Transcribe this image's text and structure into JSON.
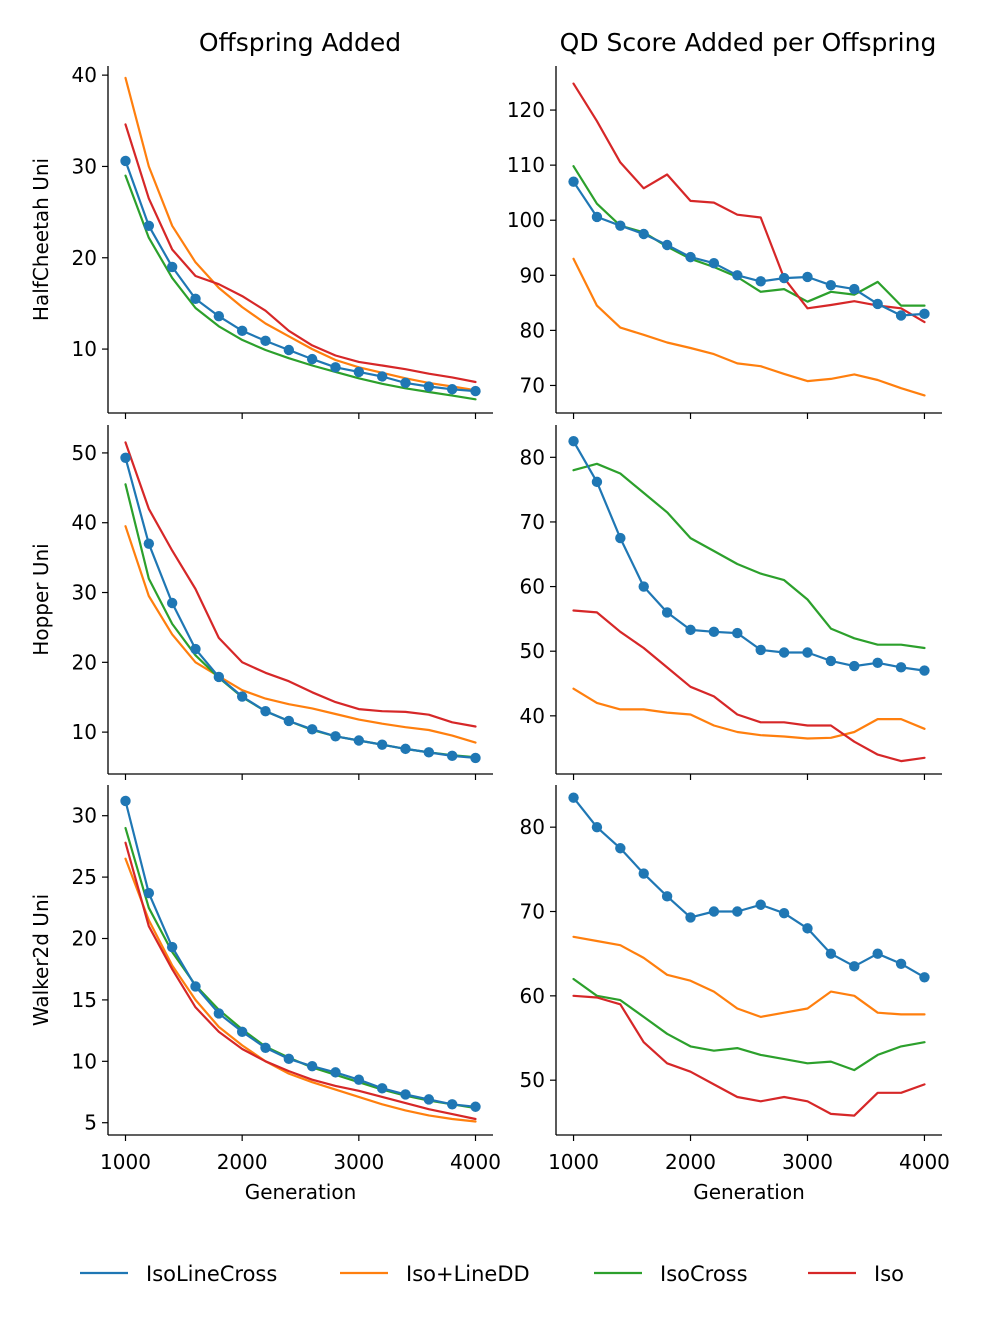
{
  "colors": {
    "IsoLineCross": "#1f77b4",
    "Iso+LineDD": "#ff7f0e",
    "IsoCross": "#2ca02c",
    "Iso": "#d62728"
  },
  "legend": {
    "position": "bottom",
    "entries": [
      "IsoLineCross",
      "Iso+LineDD",
      "IsoCross",
      "Iso"
    ]
  },
  "column_titles": [
    "Offspring Added",
    "QD Score Added per Offspring"
  ],
  "row_labels": [
    "HalfCheetah Uni",
    "Hopper Uni",
    "Walker2d Uni"
  ],
  "xlabel": "Generation",
  "chart_data": [
    {
      "type": "line",
      "title": "Offspring Added",
      "ylabel": "HalfCheetah Uni",
      "xlabel": "",
      "x": [
        1000,
        1200,
        1400,
        1600,
        1800,
        2000,
        2200,
        2400,
        2600,
        2800,
        3000,
        3200,
        3400,
        3600,
        3800,
        4000
      ],
      "xlim": [
        850,
        4150
      ],
      "ylim": [
        3,
        41
      ],
      "yticks": [
        10,
        20,
        30,
        40
      ],
      "xticks": [
        1000,
        2000,
        3000,
        4000
      ],
      "xtick_labels_shown": false,
      "series": [
        {
          "name": "IsoLineCross",
          "marker": "circle",
          "values": [
            30.6,
            23.5,
            19.0,
            15.5,
            13.6,
            12.0,
            10.9,
            9.9,
            8.9,
            8.0,
            7.5,
            7.0,
            6.3,
            5.9,
            5.6,
            5.4
          ]
        },
        {
          "name": "Iso+LineDD",
          "values": [
            39.7,
            30.0,
            23.5,
            19.5,
            16.7,
            14.6,
            12.8,
            11.4,
            10.0,
            8.8,
            8.0,
            7.4,
            6.8,
            6.3,
            5.9,
            5.5
          ]
        },
        {
          "name": "IsoCross",
          "values": [
            29.0,
            22.2,
            17.8,
            14.5,
            12.5,
            11.0,
            9.9,
            9.0,
            8.2,
            7.5,
            6.8,
            6.2,
            5.7,
            5.3,
            4.9,
            4.5
          ]
        },
        {
          "name": "Iso",
          "values": [
            34.6,
            26.5,
            20.9,
            18.0,
            17.1,
            15.8,
            14.2,
            12.0,
            10.4,
            9.3,
            8.6,
            8.2,
            7.8,
            7.3,
            6.9,
            6.4
          ]
        }
      ]
    },
    {
      "type": "line",
      "title": "QD Score Added per Offspring",
      "ylabel": "",
      "xlabel": "",
      "x": [
        1000,
        1200,
        1400,
        1600,
        1800,
        2000,
        2200,
        2400,
        2600,
        2800,
        3000,
        3200,
        3400,
        3600,
        3800,
        4000
      ],
      "xlim": [
        850,
        4150
      ],
      "ylim": [
        65,
        128
      ],
      "yticks": [
        70,
        80,
        90,
        100,
        110,
        120
      ],
      "xticks": [
        1000,
        2000,
        3000,
        4000
      ],
      "xtick_labels_shown": false,
      "series": [
        {
          "name": "IsoLineCross",
          "marker": "circle",
          "values": [
            107.0,
            100.6,
            99.0,
            97.5,
            95.5,
            93.3,
            92.2,
            90.0,
            88.9,
            89.5,
            89.7,
            88.2,
            87.5,
            84.8,
            82.7,
            83.0
          ]
        },
        {
          "name": "Iso+LineDD",
          "values": [
            93.0,
            84.5,
            80.5,
            79.2,
            77.8,
            76.8,
            75.7,
            74.0,
            73.5,
            72.1,
            70.8,
            71.2,
            72.0,
            71.0,
            69.5,
            68.2
          ]
        },
        {
          "name": "IsoCross",
          "values": [
            109.8,
            103.0,
            99.0,
            97.8,
            95.2,
            93.0,
            91.5,
            89.7,
            87.0,
            87.5,
            85.2,
            87.0,
            86.5,
            88.8,
            84.5,
            84.5
          ]
        },
        {
          "name": "Iso",
          "values": [
            124.8,
            118.0,
            110.5,
            105.8,
            108.3,
            103.5,
            103.2,
            101.0,
            100.5,
            89.5,
            84.0,
            84.6,
            85.3,
            84.5,
            84.0,
            81.5
          ]
        }
      ]
    },
    {
      "type": "line",
      "title": "",
      "ylabel": "Hopper Uni",
      "xlabel": "",
      "x": [
        1000,
        1200,
        1400,
        1600,
        1800,
        2000,
        2200,
        2400,
        2600,
        2800,
        3000,
        3200,
        3400,
        3600,
        3800,
        4000
      ],
      "xlim": [
        850,
        4150
      ],
      "ylim": [
        4,
        54
      ],
      "yticks": [
        10,
        20,
        30,
        40,
        50
      ],
      "xticks": [
        1000,
        2000,
        3000,
        4000
      ],
      "xtick_labels_shown": false,
      "series": [
        {
          "name": "IsoLineCross",
          "marker": "circle",
          "values": [
            49.3,
            37.0,
            28.5,
            21.9,
            17.9,
            15.1,
            13.0,
            11.6,
            10.4,
            9.4,
            8.8,
            8.2,
            7.6,
            7.1,
            6.6,
            6.3
          ]
        },
        {
          "name": "Iso+LineDD",
          "values": [
            39.5,
            29.5,
            24.0,
            20.0,
            18.0,
            16.0,
            14.8,
            14.0,
            13.4,
            12.6,
            11.8,
            11.2,
            10.7,
            10.3,
            9.5,
            8.5
          ]
        },
        {
          "name": "IsoCross",
          "values": [
            45.5,
            32.0,
            25.5,
            21.0,
            17.8,
            15.0,
            13.0,
            11.6,
            10.3,
            9.4,
            8.8,
            8.2,
            7.6,
            7.1,
            6.7,
            6.4
          ]
        },
        {
          "name": "Iso",
          "values": [
            51.5,
            42.0,
            36.0,
            30.5,
            23.5,
            20.0,
            18.5,
            17.3,
            15.7,
            14.3,
            13.3,
            13.0,
            12.9,
            12.5,
            11.4,
            10.8
          ]
        }
      ]
    },
    {
      "type": "line",
      "title": "",
      "ylabel": "",
      "xlabel": "",
      "x": [
        1000,
        1200,
        1400,
        1600,
        1800,
        2000,
        2200,
        2400,
        2600,
        2800,
        3000,
        3200,
        3400,
        3600,
        3800,
        4000
      ],
      "xlim": [
        850,
        4150
      ],
      "ylim": [
        31,
        85
      ],
      "yticks": [
        40,
        50,
        60,
        70,
        80
      ],
      "xticks": [
        1000,
        2000,
        3000,
        4000
      ],
      "xtick_labels_shown": false,
      "series": [
        {
          "name": "IsoLineCross",
          "marker": "circle",
          "values": [
            82.5,
            76.2,
            67.5,
            60.0,
            56.0,
            53.3,
            53.0,
            52.8,
            50.2,
            49.8,
            49.8,
            48.5,
            47.7,
            48.2,
            47.5,
            47.0
          ]
        },
        {
          "name": "Iso+LineDD",
          "values": [
            44.2,
            42.0,
            41.0,
            41.0,
            40.5,
            40.2,
            38.5,
            37.5,
            37.0,
            36.8,
            36.5,
            36.6,
            37.5,
            39.5,
            39.5,
            38.0
          ]
        },
        {
          "name": "IsoCross",
          "values": [
            78.0,
            79.0,
            77.5,
            74.5,
            71.5,
            67.5,
            65.5,
            63.5,
            62.0,
            61.0,
            58.0,
            53.5,
            52.0,
            51.0,
            51.0,
            50.5
          ]
        },
        {
          "name": "Iso",
          "values": [
            56.3,
            56.0,
            53.0,
            50.5,
            47.5,
            44.5,
            43.0,
            40.2,
            39.0,
            39.0,
            38.5,
            38.5,
            36.0,
            34.0,
            33.0,
            33.5
          ]
        }
      ]
    },
    {
      "type": "line",
      "title": "",
      "ylabel": "Walker2d Uni",
      "xlabel": "Generation",
      "x": [
        1000,
        1200,
        1400,
        1600,
        1800,
        2000,
        2200,
        2400,
        2600,
        2800,
        3000,
        3200,
        3400,
        3600,
        3800,
        4000
      ],
      "xlim": [
        850,
        4150
      ],
      "ylim": [
        4,
        32.5
      ],
      "yticks": [
        5,
        10,
        15,
        20,
        25,
        30
      ],
      "xticks": [
        1000,
        2000,
        3000,
        4000
      ],
      "xtick_labels_shown": true,
      "series": [
        {
          "name": "IsoLineCross",
          "marker": "circle",
          "values": [
            31.2,
            23.7,
            19.3,
            16.1,
            13.9,
            12.4,
            11.1,
            10.2,
            9.6,
            9.1,
            8.5,
            7.8,
            7.3,
            6.9,
            6.5,
            6.3
          ]
        },
        {
          "name": "Iso+LineDD",
          "values": [
            26.5,
            21.5,
            17.8,
            15.0,
            12.8,
            11.3,
            10.0,
            9.0,
            8.3,
            7.7,
            7.1,
            6.5,
            6.0,
            5.6,
            5.3,
            5.1
          ]
        },
        {
          "name": "IsoCross",
          "values": [
            29.0,
            22.5,
            18.9,
            16.2,
            14.2,
            12.6,
            11.2,
            10.3,
            9.5,
            8.9,
            8.3,
            7.7,
            7.2,
            6.8,
            6.5,
            6.2
          ]
        },
        {
          "name": "Iso",
          "values": [
            27.8,
            21.0,
            17.5,
            14.4,
            12.4,
            11.0,
            10.0,
            9.2,
            8.5,
            8.0,
            7.6,
            7.1,
            6.6,
            6.1,
            5.7,
            5.3
          ]
        }
      ]
    },
    {
      "type": "line",
      "title": "",
      "ylabel": "",
      "xlabel": "Generation",
      "x": [
        1000,
        1200,
        1400,
        1600,
        1800,
        2000,
        2200,
        2400,
        2600,
        2800,
        3000,
        3200,
        3400,
        3600,
        3800,
        4000
      ],
      "xlim": [
        850,
        4150
      ],
      "ylim": [
        43.5,
        85
      ],
      "yticks": [
        50,
        60,
        70,
        80
      ],
      "xticks": [
        1000,
        2000,
        3000,
        4000
      ],
      "xtick_labels_shown": true,
      "series": [
        {
          "name": "IsoLineCross",
          "marker": "circle",
          "values": [
            83.5,
            80.0,
            77.5,
            74.5,
            71.8,
            69.3,
            70.0,
            70.0,
            70.8,
            69.8,
            68.0,
            65.0,
            63.5,
            65.0,
            63.8,
            62.2
          ]
        },
        {
          "name": "Iso+LineDD",
          "values": [
            67.0,
            66.5,
            66.0,
            64.5,
            62.5,
            61.8,
            60.5,
            58.5,
            57.5,
            58.0,
            58.5,
            60.5,
            60.0,
            58.0,
            57.8,
            57.8
          ]
        },
        {
          "name": "IsoCross",
          "values": [
            62.0,
            60.0,
            59.5,
            57.5,
            55.5,
            54.0,
            53.5,
            53.8,
            53.0,
            52.5,
            52.0,
            52.2,
            51.2,
            53.0,
            54.0,
            54.5
          ]
        },
        {
          "name": "Iso",
          "values": [
            60.0,
            59.8,
            59.0,
            54.5,
            52.0,
            51.0,
            49.5,
            48.0,
            47.5,
            48.0,
            47.5,
            46.0,
            45.8,
            48.5,
            48.5,
            49.5
          ]
        }
      ]
    }
  ]
}
